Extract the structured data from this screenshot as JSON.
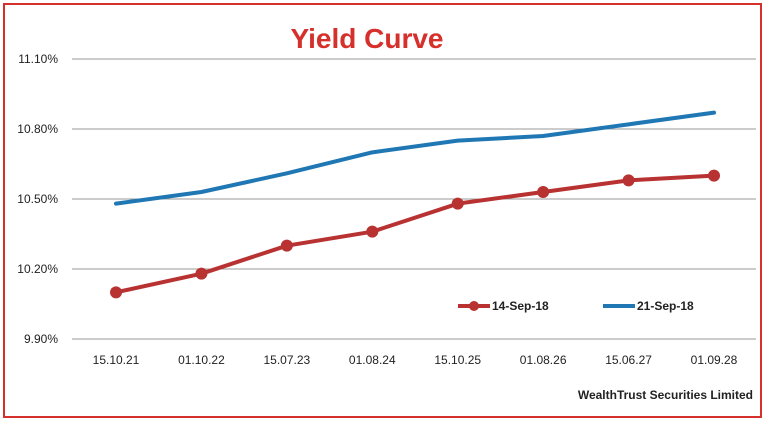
{
  "chart_data": {
    "type": "line",
    "title": "Yield Curve",
    "categories": [
      "15.10.21",
      "01.10.22",
      "15.07.23",
      "01.08.24",
      "15.10.25",
      "01.08.26",
      "15.06.27",
      "01.09.28"
    ],
    "series": [
      {
        "name": "14-Sep-18",
        "color": "#b83232",
        "marker": "circle",
        "values": [
          10.1,
          10.18,
          10.3,
          10.36,
          10.48,
          10.53,
          10.58,
          10.6
        ]
      },
      {
        "name": "21-Sep-18",
        "color": "#1f77b4",
        "marker": "none",
        "values": [
          10.48,
          10.53,
          10.61,
          10.7,
          10.75,
          10.77,
          10.82,
          10.87
        ]
      }
    ],
    "yticks": [
      "9.90%",
      "10.20%",
      "10.50%",
      "10.80%",
      "11.10%"
    ],
    "ylim": [
      9.9,
      11.1
    ],
    "grid": true,
    "legend_position": "bottom-right",
    "source": "WealthTrust Securities Limited"
  }
}
